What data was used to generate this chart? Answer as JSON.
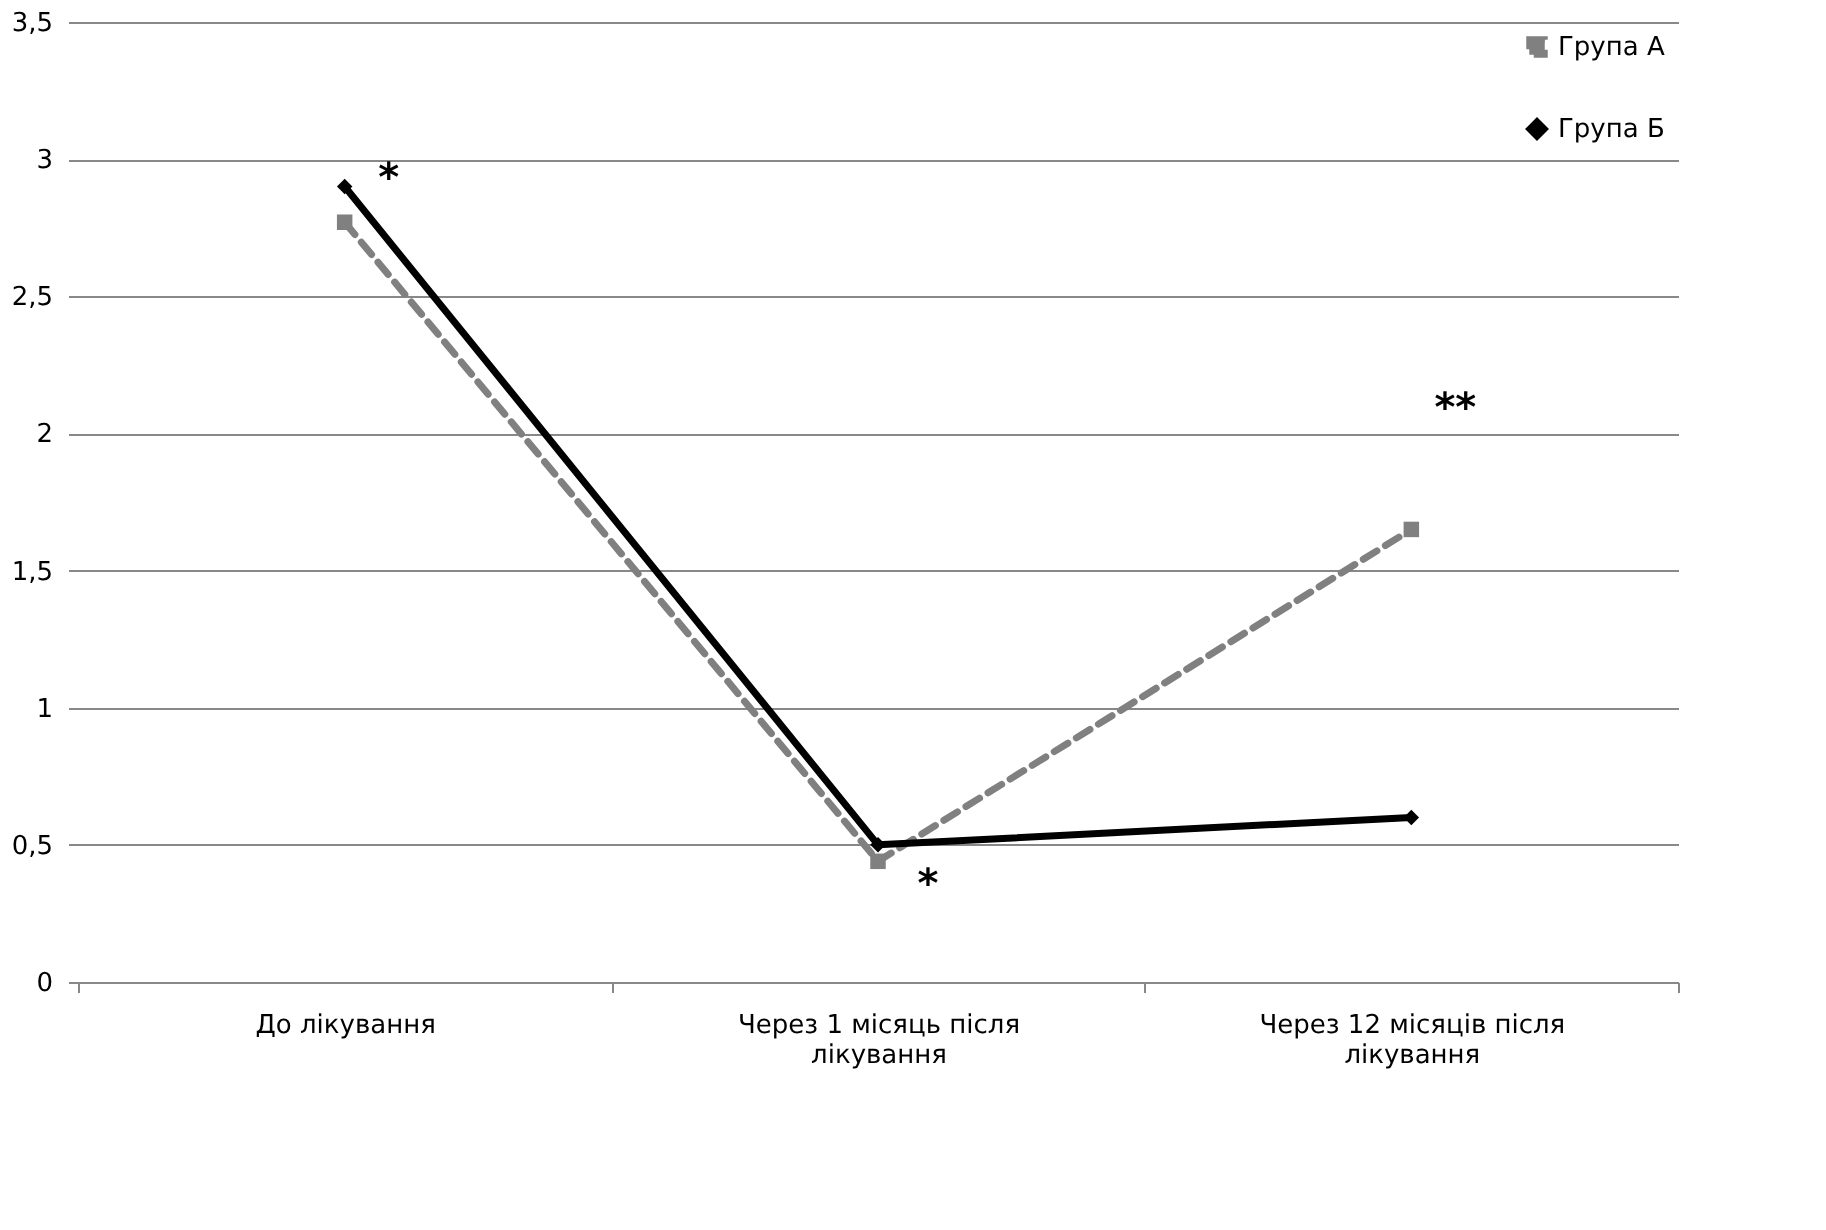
{
  "chart_data": {
    "type": "line",
    "categories": [
      "До лікування",
      "Через 1 місяць після лікування",
      "Через 12 місяців після лікування"
    ],
    "series": [
      {
        "name": "Група А",
        "color": "#808080",
        "values": [
          2.77,
          0.44,
          1.65
        ],
        "marker": "square",
        "line_style": "dashed"
      },
      {
        "name": "Група Б",
        "color": "#000000",
        "values": [
          2.9,
          0.5,
          0.6
        ],
        "marker": "diamond",
        "line_style": "solid"
      }
    ],
    "ylim": [
      0,
      3.5
    ],
    "yticks": [
      0,
      {
        "value": 0.5,
        "label": "0,5"
      },
      1,
      {
        "value": 1.5,
        "label": "1,5"
      },
      2,
      {
        "value": 2.5,
        "label": "2,5"
      },
      3,
      {
        "value": 3.5,
        "label": "3,5"
      }
    ],
    "grid": "y",
    "legend": "top right",
    "annotations": [
      {
        "text": "*",
        "x": "До лікування",
        "y": 2.9
      },
      {
        "text": "*",
        "x": "Через 1 місяць після лікування",
        "y": 0.44
      },
      {
        "text": "**",
        "x": "Через 12 місяців після лікування",
        "y": 1.65
      }
    ]
  }
}
